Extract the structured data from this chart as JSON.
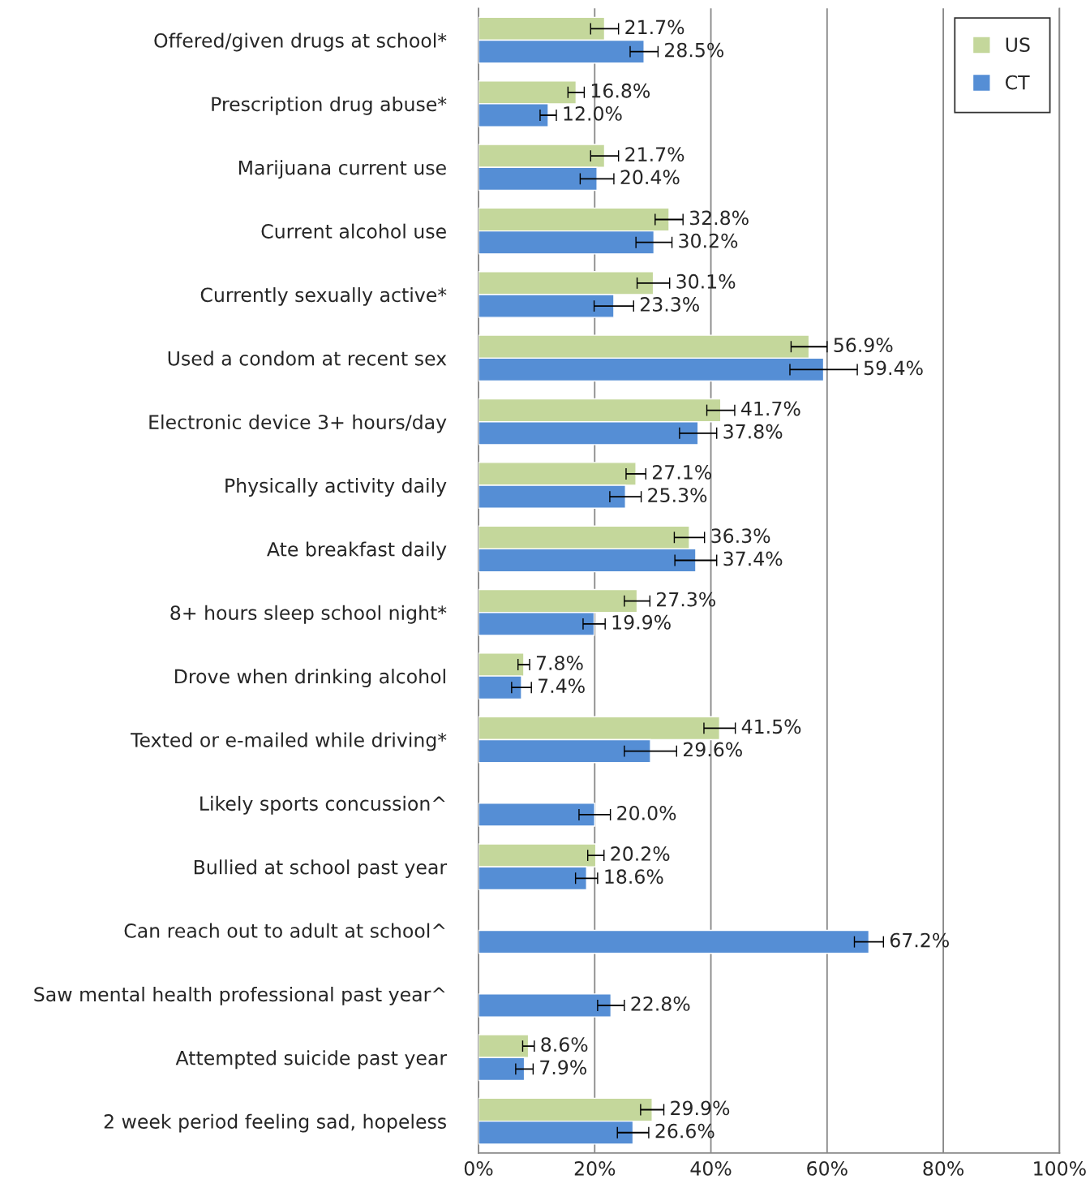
{
  "chart_data": {
    "type": "bar",
    "orientation": "horizontal",
    "categories": [
      "Offered/given drugs at school*",
      "Prescription drug abuse*",
      "Marijuana current use",
      "Current alcohol use",
      "Currently sexually active*",
      "Used a condom at recent sex",
      "Electronic device 3+ hours/day",
      "Physically activity daily",
      "Ate breakfast daily",
      "8+ hours sleep school night*",
      "Drove when drinking alcohol",
      "Texted or e-mailed while driving*",
      "Likely sports concussion^",
      "Bullied at school past year",
      "Can reach out to adult at school^",
      "Saw mental health professional past year^",
      "Attempted suicide past year",
      "2 week period feeling sad, hopeless"
    ],
    "series": [
      {
        "name": "US",
        "color": "#c4d79b",
        "values": [
          21.7,
          16.8,
          21.7,
          32.8,
          30.1,
          56.9,
          41.7,
          27.1,
          36.3,
          27.3,
          7.8,
          41.5,
          null,
          20.2,
          null,
          null,
          8.6,
          29.9
        ],
        "errors": [
          2.4,
          1.4,
          2.4,
          2.4,
          2.8,
          3.1,
          2.4,
          1.7,
          2.6,
          2.2,
          1.0,
          2.7,
          null,
          1.4,
          null,
          null,
          1.0,
          2.0
        ],
        "value_labels": [
          "21.7%",
          "16.8%",
          "21.7%",
          "32.8%",
          "30.1%",
          "56.9%",
          "41.7%",
          "27.1%",
          "36.3%",
          "27.3%",
          "7.8%",
          "41.5%",
          null,
          "20.2%",
          null,
          null,
          "8.6%",
          "29.9%"
        ]
      },
      {
        "name": "CT",
        "color": "#558ed5",
        "values": [
          28.5,
          12.0,
          20.4,
          30.2,
          23.3,
          59.4,
          37.8,
          25.3,
          37.4,
          19.9,
          7.4,
          29.6,
          20.0,
          18.6,
          67.2,
          22.8,
          7.9,
          26.6
        ],
        "errors": [
          2.4,
          1.4,
          2.9,
          3.1,
          3.4,
          5.8,
          3.2,
          2.7,
          3.6,
          1.9,
          1.7,
          4.5,
          2.7,
          1.9,
          2.5,
          2.3,
          1.5,
          2.7
        ],
        "value_labels": [
          "28.5%",
          "12.0%",
          "20.4%",
          "30.2%",
          "23.3%",
          "59.4%",
          "37.8%",
          "25.3%",
          "37.4%",
          "19.9%",
          "7.4%",
          "29.6%",
          "20.0%",
          "18.6%",
          "67.2%",
          "22.8%",
          "7.9%",
          "26.6%"
        ]
      }
    ],
    "xlim": [
      0,
      100
    ],
    "xticks": [
      {
        "value": 0,
        "label": "0%"
      },
      {
        "value": 20,
        "label": "20%"
      },
      {
        "value": 40,
        "label": "40%"
      },
      {
        "value": 60,
        "label": "60%"
      },
      {
        "value": 80,
        "label": "80%"
      },
      {
        "value": 100,
        "label": "100%"
      }
    ],
    "grid": "x",
    "legend": "top right"
  }
}
